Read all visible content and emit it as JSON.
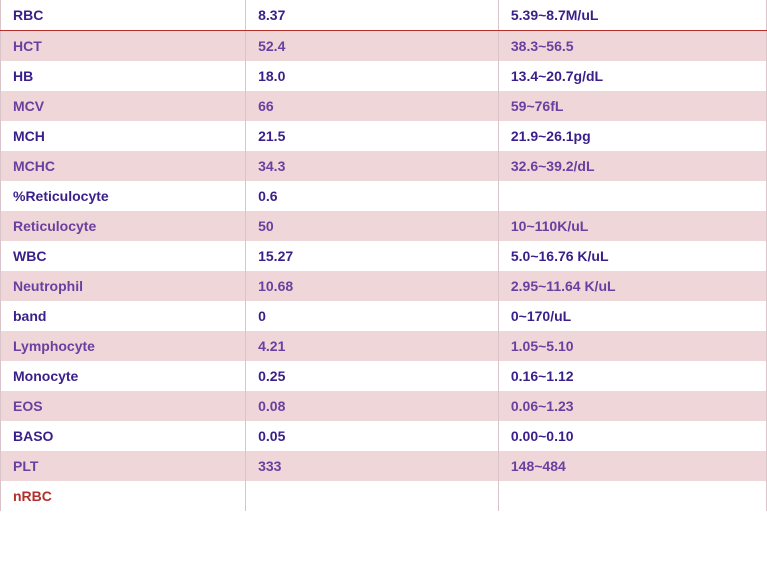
{
  "table": {
    "columns": [
      {
        "key": "param",
        "width": "32%"
      },
      {
        "key": "value",
        "width": "33%"
      },
      {
        "key": "range",
        "width": "35%"
      }
    ],
    "row_bg_colors": {
      "even": "#ffffff",
      "odd": "#eed6d9"
    },
    "text_colors": {
      "white_row": "#3a1f8a",
      "pink_row": "#6b3fa0",
      "highlight": "#b4302a"
    },
    "border_color": "#d9c4c9",
    "first_row_bottom_border_color": "#b4302a",
    "font_size": 14,
    "font_weight": "bold",
    "rows": [
      {
        "param": "RBC",
        "value": "8.37",
        "range": "5.39~8.7M/uL"
      },
      {
        "param": "HCT",
        "value": "52.4",
        "range": "38.3~56.5"
      },
      {
        "param": "HB",
        "value": "18.0",
        "range": "13.4~20.7g/dL"
      },
      {
        "param": "MCV",
        "value": "66",
        "range": "59~76fL"
      },
      {
        "param": "MCH",
        "value": "21.5",
        "range": "21.9~26.1pg"
      },
      {
        "param": "MCHC",
        "value": "34.3",
        "range": "32.6~39.2/dL"
      },
      {
        "param": "%Reticulocyte",
        "value": "0.6",
        "range": ""
      },
      {
        "param": "Reticulocyte",
        "value": "50",
        "range": "10~110K/uL"
      },
      {
        "param": "WBC",
        "value": "15.27",
        "range": "5.0~16.76 K/uL"
      },
      {
        "param": "Neutrophil",
        "value": "10.68",
        "range": "2.95~11.64 K/uL"
      },
      {
        "param": "band",
        "value": "0",
        "range": "0~170/uL"
      },
      {
        "param": "Lymphocyte",
        "value": "4.21",
        "range": "1.05~5.10"
      },
      {
        "param": "Monocyte",
        "value": "0.25",
        "range": "0.16~1.12"
      },
      {
        "param": "EOS",
        "value": "0.08",
        "range": "0.06~1.23"
      },
      {
        "param": "BASO",
        "value": "0.05",
        "range": "0.00~0.10"
      },
      {
        "param": "PLT",
        "value": "333",
        "range": "148~484"
      },
      {
        "param": "nRBC",
        "value": "",
        "range": "",
        "highlight": true
      }
    ]
  }
}
